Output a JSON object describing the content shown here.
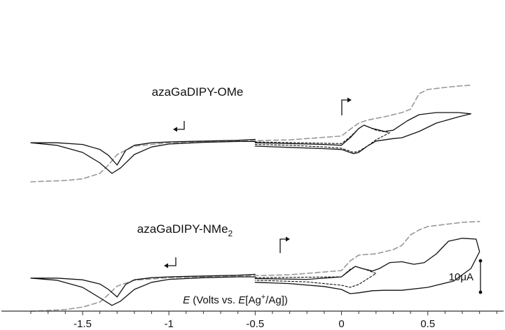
{
  "chart_data": {
    "type": "line",
    "title": "",
    "xlabel": {
      "symbol": "E",
      "text": " (Volts vs. ",
      "symbol2": "E",
      "ref_open": "[Ag",
      "ref_sup": "+",
      "ref_close": "/Ag])"
    },
    "ylabel": "",
    "xlim": [
      -1.8,
      0.85
    ],
    "x_ticks": [
      -1.5,
      -1,
      -0.5,
      0,
      0.5
    ],
    "x_tick_labels": [
      "-1.5",
      "-1",
      "-0.5",
      "0",
      "0.5"
    ],
    "grid": false,
    "legend": "none",
    "scale_bar": {
      "label": "10μA",
      "value_uA": 10
    },
    "colors": {
      "cv": "#111111",
      "dashed_cv": "#111111",
      "ldv": "#999999"
    },
    "panels": [
      {
        "label": "azaGaDIPY-OMe",
        "label_sub": "",
        "cv_left": [
          [
            -0.5,
            -0.74
          ],
          [
            -0.6,
            -0.76
          ],
          [
            -0.8,
            -0.78
          ],
          [
            -1.0,
            -0.8
          ],
          [
            -1.1,
            -0.82
          ],
          [
            -1.2,
            -0.88
          ],
          [
            -1.25,
            -1.0
          ],
          [
            -1.3,
            -1.35
          ],
          [
            -1.35,
            -1.12
          ],
          [
            -1.4,
            -0.98
          ],
          [
            -1.5,
            -0.86
          ],
          [
            -1.65,
            -0.82
          ],
          [
            -1.8,
            -0.82
          ],
          [
            -1.65,
            -0.88
          ],
          [
            -1.5,
            -1.05
          ],
          [
            -1.4,
            -1.3
          ],
          [
            -1.33,
            -1.55
          ],
          [
            -1.28,
            -1.42
          ],
          [
            -1.2,
            -1.1
          ],
          [
            -1.1,
            -0.92
          ],
          [
            -1.0,
            -0.85
          ],
          [
            -0.8,
            -0.81
          ],
          [
            -0.6,
            -0.79
          ],
          [
            -0.5,
            -0.79
          ]
        ],
        "cv_right": [
          [
            -0.5,
            -0.82
          ],
          [
            -0.3,
            -0.84
          ],
          [
            -0.1,
            -0.86
          ],
          [
            0.0,
            -0.88
          ],
          [
            0.05,
            -0.7
          ],
          [
            0.1,
            -0.48
          ],
          [
            0.13,
            -0.4
          ],
          [
            0.18,
            -0.48
          ],
          [
            0.25,
            -0.55
          ],
          [
            0.3,
            -0.52
          ],
          [
            0.38,
            -0.3
          ],
          [
            0.45,
            -0.15
          ],
          [
            0.55,
            -0.1
          ],
          [
            0.68,
            -0.1
          ],
          [
            0.75,
            -0.13
          ],
          [
            0.68,
            -0.2
          ],
          [
            0.55,
            -0.35
          ],
          [
            0.45,
            -0.55
          ],
          [
            0.35,
            -0.7
          ],
          [
            0.3,
            -0.72
          ],
          [
            0.2,
            -0.78
          ],
          [
            0.15,
            -0.9
          ],
          [
            0.1,
            -1.05
          ],
          [
            0.07,
            -1.08
          ],
          [
            0.0,
            -0.98
          ],
          [
            -0.1,
            -0.96
          ],
          [
            -0.3,
            -0.93
          ],
          [
            -0.5,
            -0.9
          ]
        ],
        "cv_right_dashed": [
          [
            -0.5,
            -0.8
          ],
          [
            0.0,
            -0.84
          ],
          [
            0.05,
            -0.68
          ],
          [
            0.1,
            -0.48
          ],
          [
            0.13,
            -0.4
          ],
          [
            0.2,
            -0.52
          ],
          [
            0.28,
            -0.58
          ],
          [
            0.2,
            -0.75
          ],
          [
            0.15,
            -0.9
          ],
          [
            0.1,
            -1.02
          ],
          [
            0.07,
            -1.05
          ],
          [
            0.0,
            -0.95
          ],
          [
            -0.1,
            -0.92
          ],
          [
            -0.3,
            -0.88
          ],
          [
            -0.5,
            -0.86
          ]
        ],
        "ldv": [
          [
            -1.8,
            -1.75
          ],
          [
            -1.6,
            -1.72
          ],
          [
            -1.5,
            -1.68
          ],
          [
            -1.4,
            -1.55
          ],
          [
            -1.35,
            -1.35
          ],
          [
            -1.3,
            -1.1
          ],
          [
            -1.2,
            -0.9
          ],
          [
            -1.0,
            -0.82
          ],
          [
            -0.6,
            -0.78
          ],
          [
            -0.3,
            -0.75
          ],
          [
            0.0,
            -0.66
          ],
          [
            0.05,
            -0.5
          ],
          [
            0.1,
            -0.35
          ],
          [
            0.15,
            -0.28
          ],
          [
            0.25,
            -0.2
          ],
          [
            0.35,
            -0.1
          ],
          [
            0.4,
            -0.02
          ],
          [
            0.45,
            0.35
          ],
          [
            0.5,
            0.45
          ],
          [
            0.6,
            0.5
          ],
          [
            0.7,
            0.54
          ],
          [
            0.75,
            0.55
          ]
        ]
      },
      {
        "label": "azaGaDIPY-NMe",
        "label_sub": "2",
        "cv_left": [
          [
            -0.5,
            -0.74
          ],
          [
            -0.6,
            -0.76
          ],
          [
            -0.8,
            -0.78
          ],
          [
            -1.0,
            -0.8
          ],
          [
            -1.1,
            -0.82
          ],
          [
            -1.2,
            -0.87
          ],
          [
            -1.25,
            -0.98
          ],
          [
            -1.3,
            -1.28
          ],
          [
            -1.35,
            -1.1
          ],
          [
            -1.4,
            -0.97
          ],
          [
            -1.5,
            -0.87
          ],
          [
            -1.65,
            -0.83
          ],
          [
            -1.8,
            -0.83
          ],
          [
            -1.65,
            -0.88
          ],
          [
            -1.5,
            -1.05
          ],
          [
            -1.4,
            -1.3
          ],
          [
            -1.33,
            -1.48
          ],
          [
            -1.28,
            -1.38
          ],
          [
            -1.2,
            -1.1
          ],
          [
            -1.1,
            -0.93
          ],
          [
            -1.0,
            -0.86
          ],
          [
            -0.8,
            -0.82
          ],
          [
            -0.6,
            -0.8
          ],
          [
            -0.5,
            -0.8
          ]
        ],
        "cv_right": [
          [
            -0.5,
            -0.84
          ],
          [
            -0.2,
            -0.86
          ],
          [
            0.0,
            -0.8
          ],
          [
            0.05,
            -0.64
          ],
          [
            0.08,
            -0.55
          ],
          [
            0.12,
            -0.6
          ],
          [
            0.18,
            -0.66
          ],
          [
            0.22,
            -0.6
          ],
          [
            0.28,
            -0.46
          ],
          [
            0.35,
            -0.44
          ],
          [
            0.42,
            -0.5
          ],
          [
            0.48,
            -0.46
          ],
          [
            0.55,
            -0.25
          ],
          [
            0.62,
            0.05
          ],
          [
            0.7,
            0.12
          ],
          [
            0.78,
            0.1
          ],
          [
            0.8,
            -0.2
          ],
          [
            0.75,
            -0.6
          ],
          [
            0.65,
            -0.9
          ],
          [
            0.5,
            -1.05
          ],
          [
            0.35,
            -1.12
          ],
          [
            0.25,
            -1.12
          ],
          [
            0.18,
            -1.13
          ],
          [
            0.1,
            -1.18
          ],
          [
            0.05,
            -1.2
          ],
          [
            0.0,
            -1.1
          ],
          [
            -0.1,
            -1.03
          ],
          [
            -0.3,
            -0.96
          ],
          [
            -0.5,
            -0.93
          ]
        ],
        "cv_right_dashed": [
          [
            -0.5,
            -0.82
          ],
          [
            0.0,
            -0.8
          ],
          [
            0.05,
            -0.62
          ],
          [
            0.08,
            -0.55
          ],
          [
            0.15,
            -0.64
          ],
          [
            0.2,
            -0.72
          ],
          [
            0.15,
            -0.85
          ],
          [
            0.1,
            -0.98
          ],
          [
            0.05,
            -1.05
          ],
          [
            0.0,
            -1.0
          ],
          [
            -0.2,
            -0.92
          ],
          [
            -0.5,
            -0.88
          ]
        ],
        "ldv": [
          [
            -1.8,
            -1.62
          ],
          [
            -1.6,
            -1.58
          ],
          [
            -1.5,
            -1.52
          ],
          [
            -1.4,
            -1.4
          ],
          [
            -1.35,
            -1.22
          ],
          [
            -1.3,
            -1.02
          ],
          [
            -1.2,
            -0.88
          ],
          [
            -1.0,
            -0.82
          ],
          [
            -0.6,
            -0.78
          ],
          [
            -0.3,
            -0.75
          ],
          [
            0.0,
            -0.65
          ],
          [
            0.05,
            -0.42
          ],
          [
            0.1,
            -0.28
          ],
          [
            0.2,
            -0.25
          ],
          [
            0.3,
            -0.15
          ],
          [
            0.35,
            -0.05
          ],
          [
            0.4,
            0.2
          ],
          [
            0.45,
            0.32
          ],
          [
            0.5,
            0.4
          ],
          [
            0.6,
            0.45
          ],
          [
            0.7,
            0.5
          ],
          [
            0.8,
            0.52
          ]
        ]
      }
    ]
  }
}
